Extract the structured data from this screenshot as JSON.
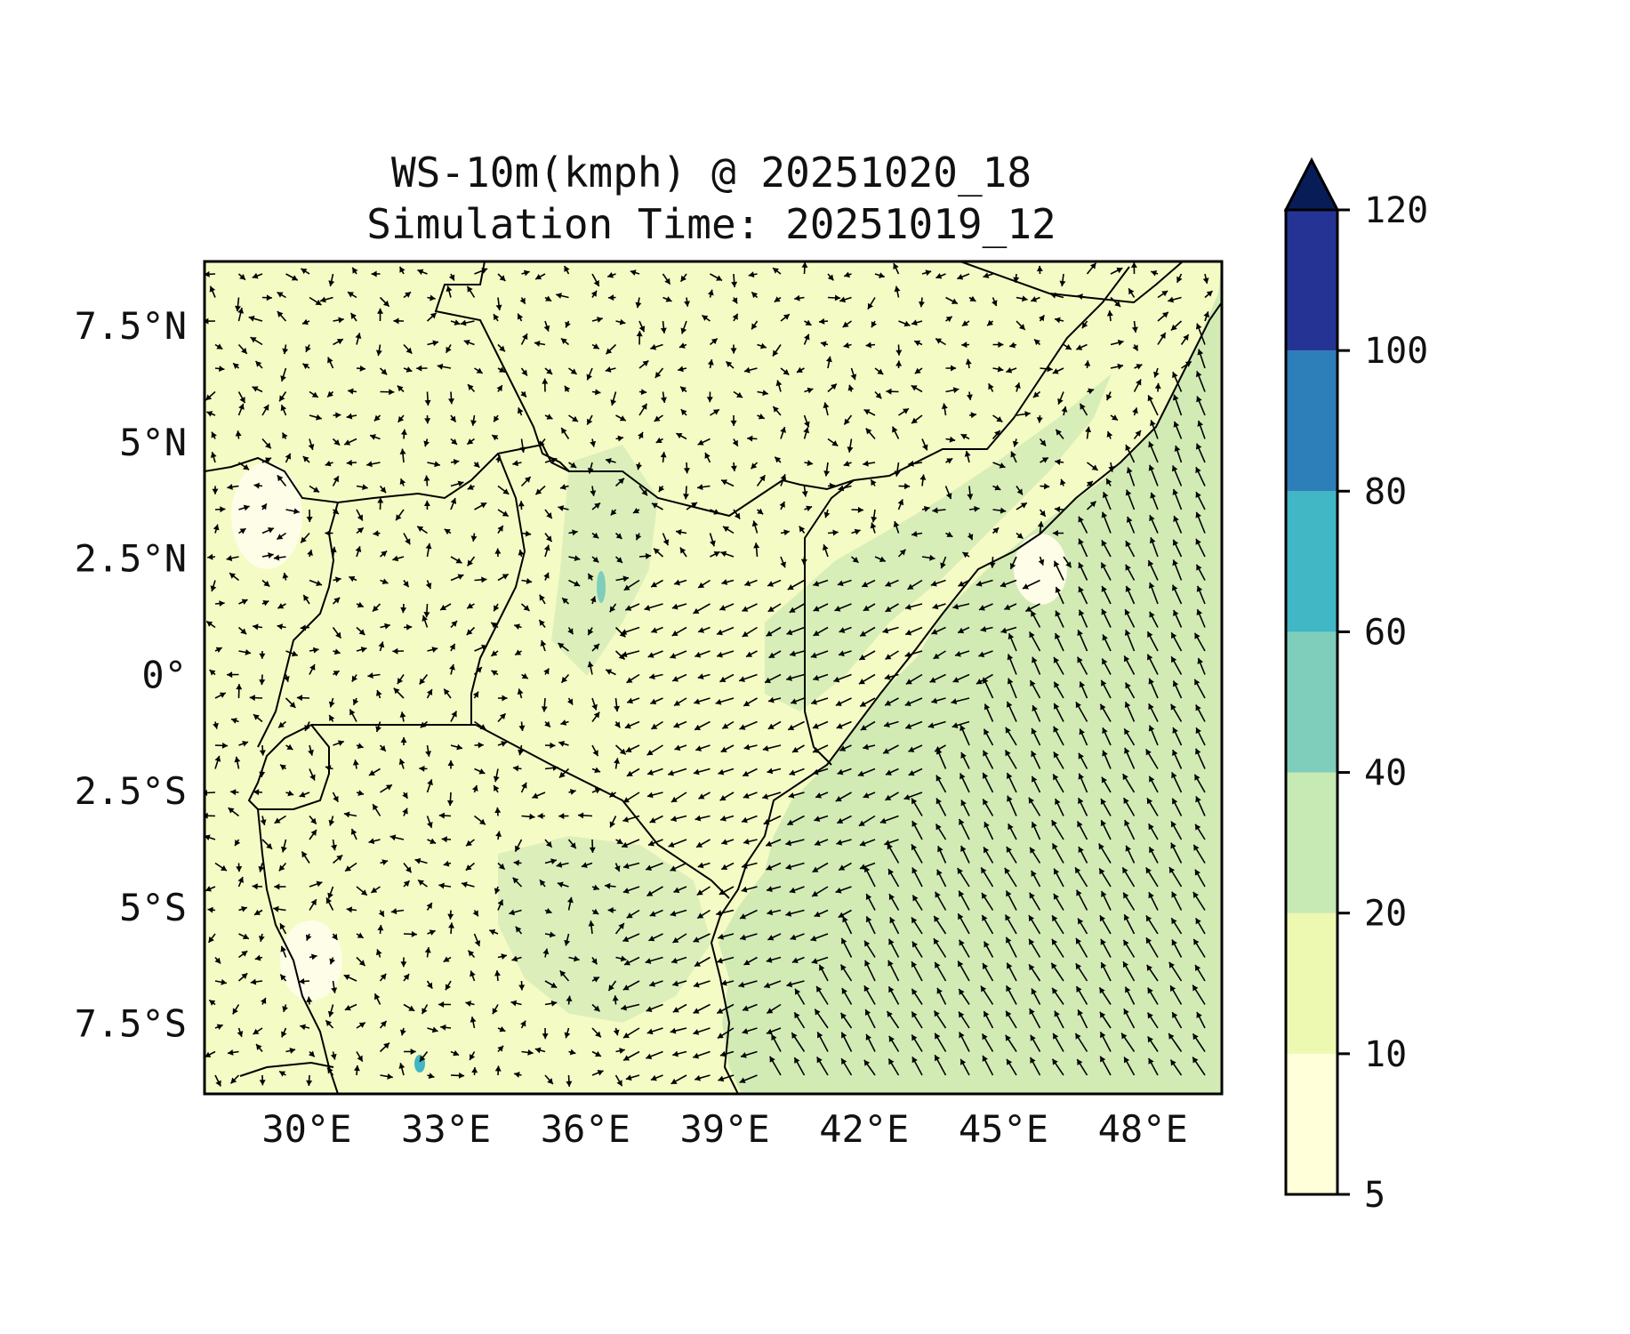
{
  "title": {
    "line1": "WS-10m(kmph) @ 20251020_18",
    "line2": "Simulation Time: 20251019_12"
  },
  "axes": {
    "x_ticks": [
      "30°E",
      "33°E",
      "36°E",
      "39°E",
      "42°E",
      "45°E",
      "48°E"
    ],
    "y_ticks": [
      "7.5°N",
      "5°N",
      "2.5°N",
      "0°",
      "2.5°S",
      "5°S",
      "7.5°S"
    ],
    "lon_range": [
      27.8,
      49.7
    ],
    "lat_range": [
      -9.0,
      8.9
    ]
  },
  "colorbar": {
    "levels": [
      "5",
      "10",
      "20",
      "40",
      "60",
      "80",
      "100",
      "120"
    ],
    "colors": [
      "#ffffd9",
      "#edf8b1",
      "#c7e9b4",
      "#7fcdbb",
      "#41b6c4",
      "#2c7fb8",
      "#253494",
      "#081d58"
    ],
    "extend": "max"
  },
  "map": {
    "land_color": "#f5fbc4",
    "ocean_color": "#d4ecb6",
    "border_color": "#000000",
    "arrow_color": "#000000"
  }
}
